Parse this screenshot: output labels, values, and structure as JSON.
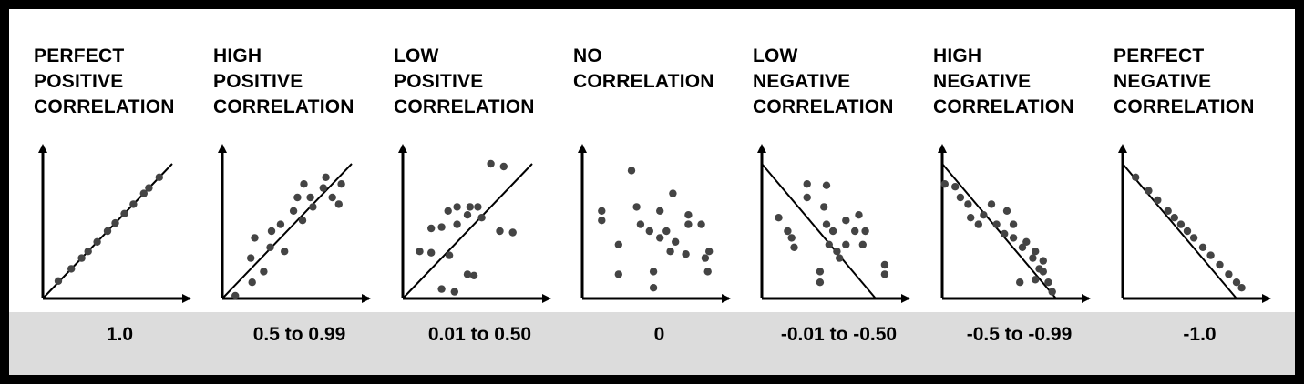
{
  "panels": [
    {
      "title": "PERFECT\nPOSITIVE\nCORRELATION",
      "range": "1.0",
      "line": "pos",
      "points": [
        [
          0.12,
          0.13
        ],
        [
          0.22,
          0.22
        ],
        [
          0.3,
          0.3
        ],
        [
          0.35,
          0.35
        ],
        [
          0.42,
          0.42
        ],
        [
          0.5,
          0.5
        ],
        [
          0.56,
          0.56
        ],
        [
          0.63,
          0.63
        ],
        [
          0.7,
          0.7
        ],
        [
          0.78,
          0.78
        ],
        [
          0.82,
          0.82
        ],
        [
          0.9,
          0.9
        ]
      ]
    },
    {
      "title": "HIGH\nPOSITIVE\nCORRELATION",
      "range": "0.5 to 0.99",
      "line": "pos",
      "points": [
        [
          0.1,
          0.02
        ],
        [
          0.23,
          0.12
        ],
        [
          0.22,
          0.3
        ],
        [
          0.32,
          0.2
        ],
        [
          0.25,
          0.45
        ],
        [
          0.38,
          0.5
        ],
        [
          0.37,
          0.38
        ],
        [
          0.45,
          0.55
        ],
        [
          0.48,
          0.35
        ],
        [
          0.55,
          0.65
        ],
        [
          0.58,
          0.75
        ],
        [
          0.63,
          0.85
        ],
        [
          0.68,
          0.75
        ],
        [
          0.7,
          0.68
        ],
        [
          0.78,
          0.82
        ],
        [
          0.8,
          0.9
        ],
        [
          0.85,
          0.75
        ],
        [
          0.92,
          0.85
        ],
        [
          0.9,
          0.7
        ],
        [
          0.62,
          0.58
        ]
      ]
    },
    {
      "title": "LOW\nPOSITIVE\nCORRELATION",
      "range": "0.01 to 0.50",
      "line": "pos",
      "points": [
        [
          0.13,
          0.35
        ],
        [
          0.22,
          0.34
        ],
        [
          0.22,
          0.52
        ],
        [
          0.3,
          0.53
        ],
        [
          0.35,
          0.65
        ],
        [
          0.42,
          0.68
        ],
        [
          0.42,
          0.55
        ],
        [
          0.5,
          0.62
        ],
        [
          0.52,
          0.68
        ],
        [
          0.58,
          0.68
        ],
        [
          0.61,
          0.6
        ],
        [
          0.68,
          1.0
        ],
        [
          0.78,
          0.98
        ],
        [
          0.75,
          0.5
        ],
        [
          0.85,
          0.49
        ],
        [
          0.3,
          0.07
        ],
        [
          0.4,
          0.05
        ],
        [
          0.5,
          0.18
        ],
        [
          0.55,
          0.17
        ],
        [
          0.36,
          0.32
        ]
      ]
    },
    {
      "title": "NO\nCORRELATION",
      "range": "0",
      "line": "none",
      "points": [
        [
          0.15,
          0.65
        ],
        [
          0.15,
          0.58
        ],
        [
          0.28,
          0.4
        ],
        [
          0.28,
          0.18
        ],
        [
          0.38,
          0.95
        ],
        [
          0.42,
          0.68
        ],
        [
          0.45,
          0.55
        ],
        [
          0.55,
          0.2
        ],
        [
          0.55,
          0.08
        ],
        [
          0.52,
          0.5
        ],
        [
          0.6,
          0.65
        ],
        [
          0.6,
          0.45
        ],
        [
          0.65,
          0.5
        ],
        [
          0.68,
          0.35
        ],
        [
          0.7,
          0.78
        ],
        [
          0.72,
          0.42
        ],
        [
          0.8,
          0.33
        ],
        [
          0.82,
          0.62
        ],
        [
          0.82,
          0.55
        ],
        [
          0.92,
          0.55
        ],
        [
          0.95,
          0.3
        ],
        [
          0.97,
          0.2
        ],
        [
          0.98,
          0.35
        ]
      ]
    },
    {
      "title": "LOW\nNEGATIVE\nCORRELATION",
      "range": "-0.01 to -0.50",
      "line": "neg",
      "points": [
        [
          0.13,
          0.6
        ],
        [
          0.2,
          0.5
        ],
        [
          0.23,
          0.45
        ],
        [
          0.25,
          0.38
        ],
        [
          0.35,
          0.75
        ],
        [
          0.35,
          0.85
        ],
        [
          0.48,
          0.68
        ],
        [
          0.5,
          0.84
        ],
        [
          0.5,
          0.55
        ],
        [
          0.52,
          0.4
        ],
        [
          0.55,
          0.5
        ],
        [
          0.58,
          0.35
        ],
        [
          0.65,
          0.4
        ],
        [
          0.6,
          0.3
        ],
        [
          0.65,
          0.58
        ],
        [
          0.72,
          0.5
        ],
        [
          0.75,
          0.62
        ],
        [
          0.78,
          0.4
        ],
        [
          0.8,
          0.5
        ],
        [
          0.45,
          0.2
        ],
        [
          0.45,
          0.12
        ],
        [
          0.95,
          0.25
        ],
        [
          0.95,
          0.18
        ]
      ]
    },
    {
      "title": "HIGH\nNEGATIVE\nCORRELATION",
      "range": "-0.5 to -0.99",
      "line": "neg",
      "points": [
        [
          0.02,
          0.85
        ],
        [
          0.1,
          0.83
        ],
        [
          0.14,
          0.75
        ],
        [
          0.2,
          0.7
        ],
        [
          0.22,
          0.6
        ],
        [
          0.28,
          0.55
        ],
        [
          0.32,
          0.62
        ],
        [
          0.38,
          0.7
        ],
        [
          0.42,
          0.55
        ],
        [
          0.48,
          0.48
        ],
        [
          0.5,
          0.65
        ],
        [
          0.55,
          0.55
        ],
        [
          0.55,
          0.45
        ],
        [
          0.62,
          0.38
        ],
        [
          0.65,
          0.42
        ],
        [
          0.7,
          0.3
        ],
        [
          0.72,
          0.35
        ],
        [
          0.75,
          0.22
        ],
        [
          0.78,
          0.2
        ],
        [
          0.6,
          0.12
        ],
        [
          0.72,
          0.14
        ],
        [
          0.82,
          0.12
        ],
        [
          0.85,
          0.05
        ],
        [
          0.78,
          0.28
        ]
      ]
    },
    {
      "title": "PERFECT\nNEGATIVE\nCORRELATION",
      "range": "-1.0",
      "line": "neg",
      "points": [
        [
          0.1,
          0.9
        ],
        [
          0.2,
          0.8
        ],
        [
          0.27,
          0.73
        ],
        [
          0.35,
          0.65
        ],
        [
          0.4,
          0.6
        ],
        [
          0.45,
          0.55
        ],
        [
          0.5,
          0.5
        ],
        [
          0.55,
          0.45
        ],
        [
          0.62,
          0.38
        ],
        [
          0.68,
          0.32
        ],
        [
          0.75,
          0.25
        ],
        [
          0.82,
          0.18
        ],
        [
          0.88,
          0.12
        ],
        [
          0.92,
          0.08
        ]
      ]
    }
  ]
}
